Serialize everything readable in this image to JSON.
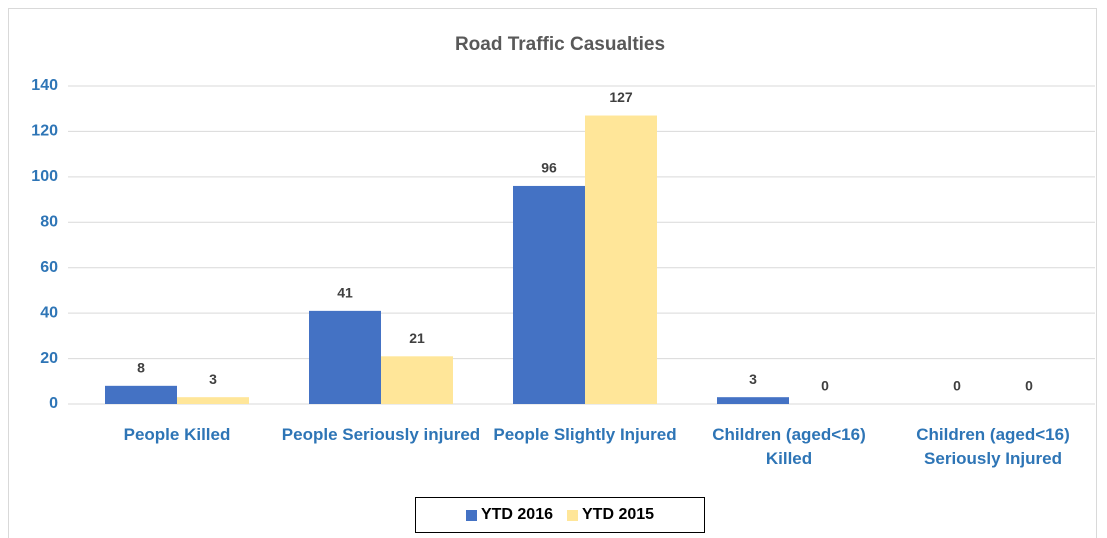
{
  "chart_data": {
    "type": "bar",
    "title": "Road Traffic Casualties",
    "categories": [
      "People Killed",
      "People Seriously injured",
      "People Slightly Injured",
      "Children (aged<16) Killed",
      "Children (aged<16) Seriously Injured"
    ],
    "series": [
      {
        "name": "YTD 2016",
        "color": "#4472c4",
        "values": [
          8,
          41,
          96,
          3,
          0
        ]
      },
      {
        "name": "YTD 2015",
        "color": "#ffe699",
        "values": [
          3,
          21,
          127,
          0,
          0
        ]
      }
    ],
    "ylim": [
      0,
      140
    ],
    "yticks": [
      0,
      20,
      40,
      60,
      80,
      100,
      120,
      140
    ],
    "grid": true,
    "legend": "bottom"
  }
}
